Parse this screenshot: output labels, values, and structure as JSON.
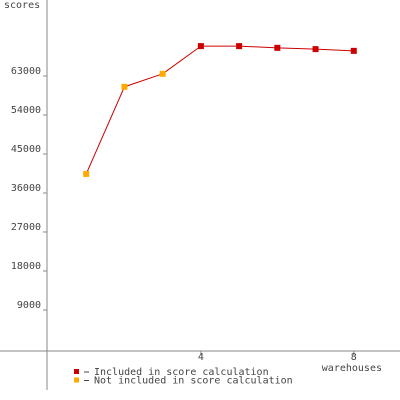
{
  "chart_data": {
    "type": "line",
    "y_label": "scores",
    "x_label": "warehouses",
    "x": [
      1,
      2,
      3,
      4,
      5,
      6,
      7,
      8
    ],
    "series": [
      {
        "name": "Included in score calculation",
        "color": "#cc0000",
        "values": [
          null,
          null,
          null,
          69900,
          69900,
          69500,
          69200,
          68800
        ]
      },
      {
        "name": "Not included in score calculation",
        "color": "#ffaa00",
        "values": [
          40400,
          60500,
          63500,
          null,
          null,
          null,
          null,
          null
        ]
      }
    ],
    "line_color": "#cc0000",
    "xlim": [
      0,
      9
    ],
    "xticks": [
      4,
      8
    ],
    "ylim": [
      -9000,
      81000
    ],
    "yticks": [
      9000,
      18000,
      27000,
      36000,
      45000,
      54000,
      63000
    ]
  }
}
